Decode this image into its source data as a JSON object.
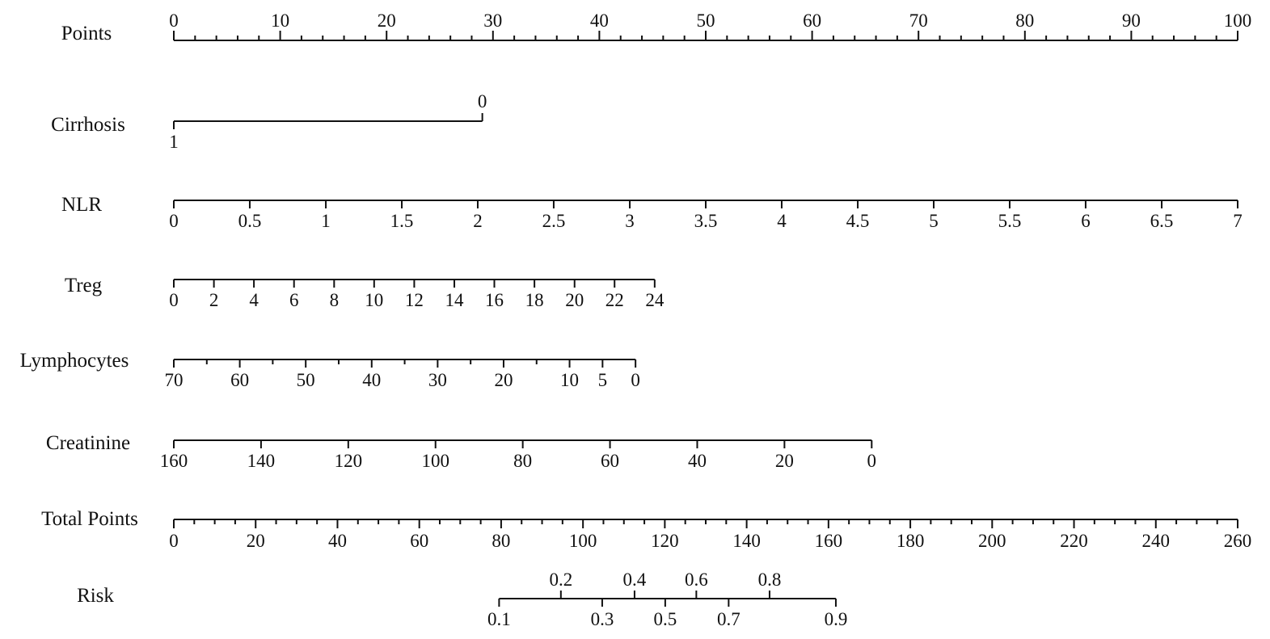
{
  "chart_data": {
    "type": "nomogram",
    "points_scale": {
      "label": "Points",
      "min": 0,
      "max": 100,
      "major_ticks": [
        0,
        10,
        20,
        30,
        40,
        50,
        60,
        70,
        80,
        90,
        100
      ],
      "minor_step": 2
    },
    "variables": [
      {
        "label": "Cirrhosis",
        "style": "binary",
        "ticks": [
          {
            "label": "1",
            "points": 0
          },
          {
            "label": "0",
            "points": 29
          }
        ]
      },
      {
        "label": "NLR",
        "style": "below",
        "ticks": [
          {
            "label": "0",
            "points": 0
          },
          {
            "label": "0.5",
            "points": 7.14
          },
          {
            "label": "1",
            "points": 14.29
          },
          {
            "label": "1.5",
            "points": 21.43
          },
          {
            "label": "2",
            "points": 28.57
          },
          {
            "label": "2.5",
            "points": 35.71
          },
          {
            "label": "3",
            "points": 42.86
          },
          {
            "label": "3.5",
            "points": 50
          },
          {
            "label": "4",
            "points": 57.14
          },
          {
            "label": "4.5",
            "points": 64.29
          },
          {
            "label": "5",
            "points": 71.43
          },
          {
            "label": "5.5",
            "points": 78.57
          },
          {
            "label": "6",
            "points": 85.71
          },
          {
            "label": "6.5",
            "points": 92.86
          },
          {
            "label": "7",
            "points": 100
          }
        ]
      },
      {
        "label": "Treg",
        "style": "below",
        "ticks": [
          {
            "label": "0",
            "points": 0
          },
          {
            "label": "2",
            "points": 3.77
          },
          {
            "label": "4",
            "points": 7.53
          },
          {
            "label": "6",
            "points": 11.3
          },
          {
            "label": "8",
            "points": 15.07
          },
          {
            "label": "10",
            "points": 18.83
          },
          {
            "label": "12",
            "points": 22.6
          },
          {
            "label": "14",
            "points": 26.37
          },
          {
            "label": "16",
            "points": 30.13
          },
          {
            "label": "18",
            "points": 33.9
          },
          {
            "label": "20",
            "points": 37.67
          },
          {
            "label": "22",
            "points": 41.43
          },
          {
            "label": "24",
            "points": 45.2
          }
        ]
      },
      {
        "label": "Lymphocytes",
        "style": "below",
        "ticks": [
          {
            "label": "70",
            "points": 0
          },
          {
            "label": "65",
            "points": 3.1,
            "minor": true
          },
          {
            "label": "60",
            "points": 6.2
          },
          {
            "label": "55",
            "points": 9.3,
            "minor": true
          },
          {
            "label": "50",
            "points": 12.4
          },
          {
            "label": "45",
            "points": 15.5,
            "minor": true
          },
          {
            "label": "40",
            "points": 18.6
          },
          {
            "label": "35",
            "points": 21.7,
            "minor": true
          },
          {
            "label": "30",
            "points": 24.8
          },
          {
            "label": "25",
            "points": 27.9,
            "minor": true
          },
          {
            "label": "20",
            "points": 31.0
          },
          {
            "label": "15",
            "points": 34.1,
            "minor": true
          },
          {
            "label": "10",
            "points": 37.2
          },
          {
            "label": "5",
            "points": 40.3
          },
          {
            "label": "0",
            "points": 43.4
          }
        ]
      },
      {
        "label": "Creatinine",
        "style": "below",
        "ticks": [
          {
            "label": "160",
            "points": 0
          },
          {
            "label": "140",
            "points": 8.2
          },
          {
            "label": "120",
            "points": 16.4
          },
          {
            "label": "100",
            "points": 24.6
          },
          {
            "label": "80",
            "points": 32.8
          },
          {
            "label": "60",
            "points": 41.0
          },
          {
            "label": "40",
            "points": 49.2
          },
          {
            "label": "20",
            "points": 57.4
          },
          {
            "label": "0",
            "points": 65.6
          }
        ]
      }
    ],
    "total_points_scale": {
      "label": "Total Points",
      "min": 0,
      "max": 260,
      "major_ticks": [
        0,
        20,
        40,
        60,
        80,
        100,
        120,
        140,
        160,
        180,
        200,
        220,
        240,
        260
      ],
      "minor_step": 5
    },
    "risk_scale": {
      "label": "Risk",
      "ticks": [
        {
          "label": "0.1",
          "total_points": 79.5,
          "position": "below"
        },
        {
          "label": "0.2",
          "total_points": 94.6,
          "position": "above"
        },
        {
          "label": "0.3",
          "total_points": 104.7,
          "position": "below"
        },
        {
          "label": "0.4",
          "total_points": 112.6,
          "position": "above"
        },
        {
          "label": "0.5",
          "total_points": 120.1,
          "position": "below"
        },
        {
          "label": "0.6",
          "total_points": 127.7,
          "position": "above"
        },
        {
          "label": "0.7",
          "total_points": 135.6,
          "position": "below"
        },
        {
          "label": "0.8",
          "total_points": 145.6,
          "position": "above"
        },
        {
          "label": "0.9",
          "total_points": 161.8,
          "position": "below"
        }
      ]
    }
  }
}
